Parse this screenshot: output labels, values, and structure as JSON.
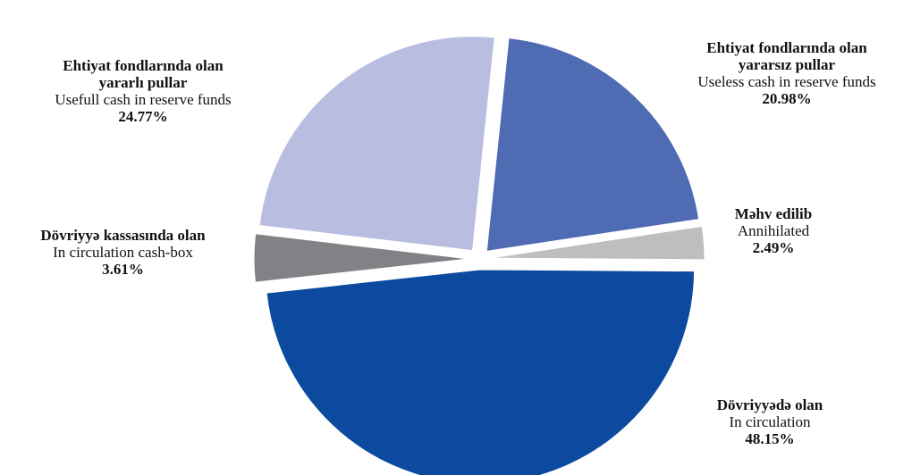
{
  "chart_data": {
    "type": "pie",
    "title": "",
    "slices": [
      {
        "label_az": "Dövriyyədə olan",
        "label_en": "In circulation",
        "value": 48.15,
        "percent_label": "48.15%",
        "color": "#0b4a9e"
      },
      {
        "label_az": "Dövriyyə kassasında olan",
        "label_en": "In circulation cash-box",
        "value": 3.61,
        "percent_label": "3.61%",
        "color": "#808285"
      },
      {
        "label_az_line1": "Ehtiyat fondlarında olan",
        "label_az_line2": "yararlı pullar",
        "label_en": "Usefull cash in reserve funds",
        "value": 24.77,
        "percent_label": "24.77%",
        "color": "#b9bde0"
      },
      {
        "label_az_line1": "Ehtiyat fondlarında olan",
        "label_az_line2": "yararsız pullar",
        "label_en": "Useless cash in reserve funds",
        "value": 20.98,
        "percent_label": "20.98%",
        "color": "#4e6bb4"
      },
      {
        "label_az": "Məhv edilib",
        "label_en": "Annihilated",
        "value": 2.49,
        "percent_label": "2.49%",
        "color": "#bcbec0"
      }
    ]
  }
}
